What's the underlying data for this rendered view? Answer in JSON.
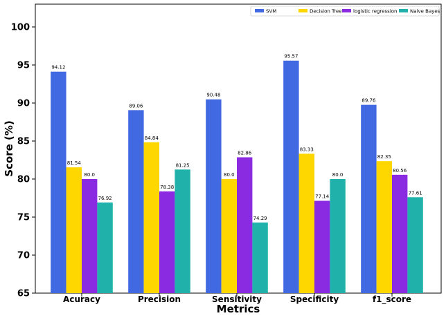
{
  "chart_data": {
    "type": "bar",
    "title": "",
    "xlabel": "Metrics",
    "ylabel": "Score (%)",
    "ylim": [
      65,
      103
    ],
    "yticks": [
      65,
      70,
      75,
      80,
      85,
      90,
      95,
      100
    ],
    "grid": false,
    "legend_position": "top-right",
    "categories": [
      "Acuracy",
      "Precision",
      "Sensitivity",
      "Specificity",
      "f1_score"
    ],
    "series": [
      {
        "name": "SVM",
        "color": "#4169e1",
        "values": [
          94.12,
          89.06,
          90.48,
          95.57,
          89.76
        ],
        "labels": [
          "94.12",
          "89.06",
          "90.48",
          "95.57",
          "89.76"
        ]
      },
      {
        "name": "Decision Tree",
        "color": "#ffd700",
        "values": [
          81.54,
          84.84,
          80.0,
          83.33,
          82.35
        ],
        "labels": [
          "81.54",
          "84.84",
          "80.0",
          "83.33",
          "82.35"
        ]
      },
      {
        "name": "logistic regression",
        "color": "#8a2be2",
        "values": [
          80.0,
          78.38,
          82.86,
          77.14,
          80.56
        ],
        "labels": [
          "80.0",
          "78.38",
          "82.86",
          "77.14",
          "80.56"
        ]
      },
      {
        "name": "Naive Bayes",
        "color": "#20b2aa",
        "values": [
          76.92,
          81.25,
          74.29,
          80.0,
          77.61
        ],
        "labels": [
          "76.92",
          "81.25",
          "74.29",
          "80.0",
          "77.61"
        ]
      }
    ]
  }
}
